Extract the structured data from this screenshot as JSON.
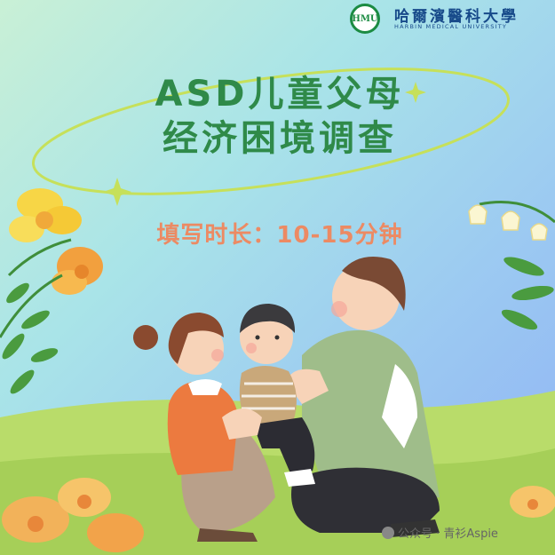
{
  "logo": {
    "emblem_text": "HMU",
    "name_cn": "哈爾濱醫科大學",
    "name_en": "HARBIN MEDICAL UNIVERSITY"
  },
  "title": {
    "line1": "ASD儿童父母",
    "line2": "经济困境调查"
  },
  "duration": "填写时长：10-15分钟",
  "watermark": "公众号 · 青衫Aspie",
  "colors": {
    "title": "#2f8a49",
    "duration": "#ec8a63",
    "ring": "#c6e05a",
    "logo": "#174a8a"
  }
}
